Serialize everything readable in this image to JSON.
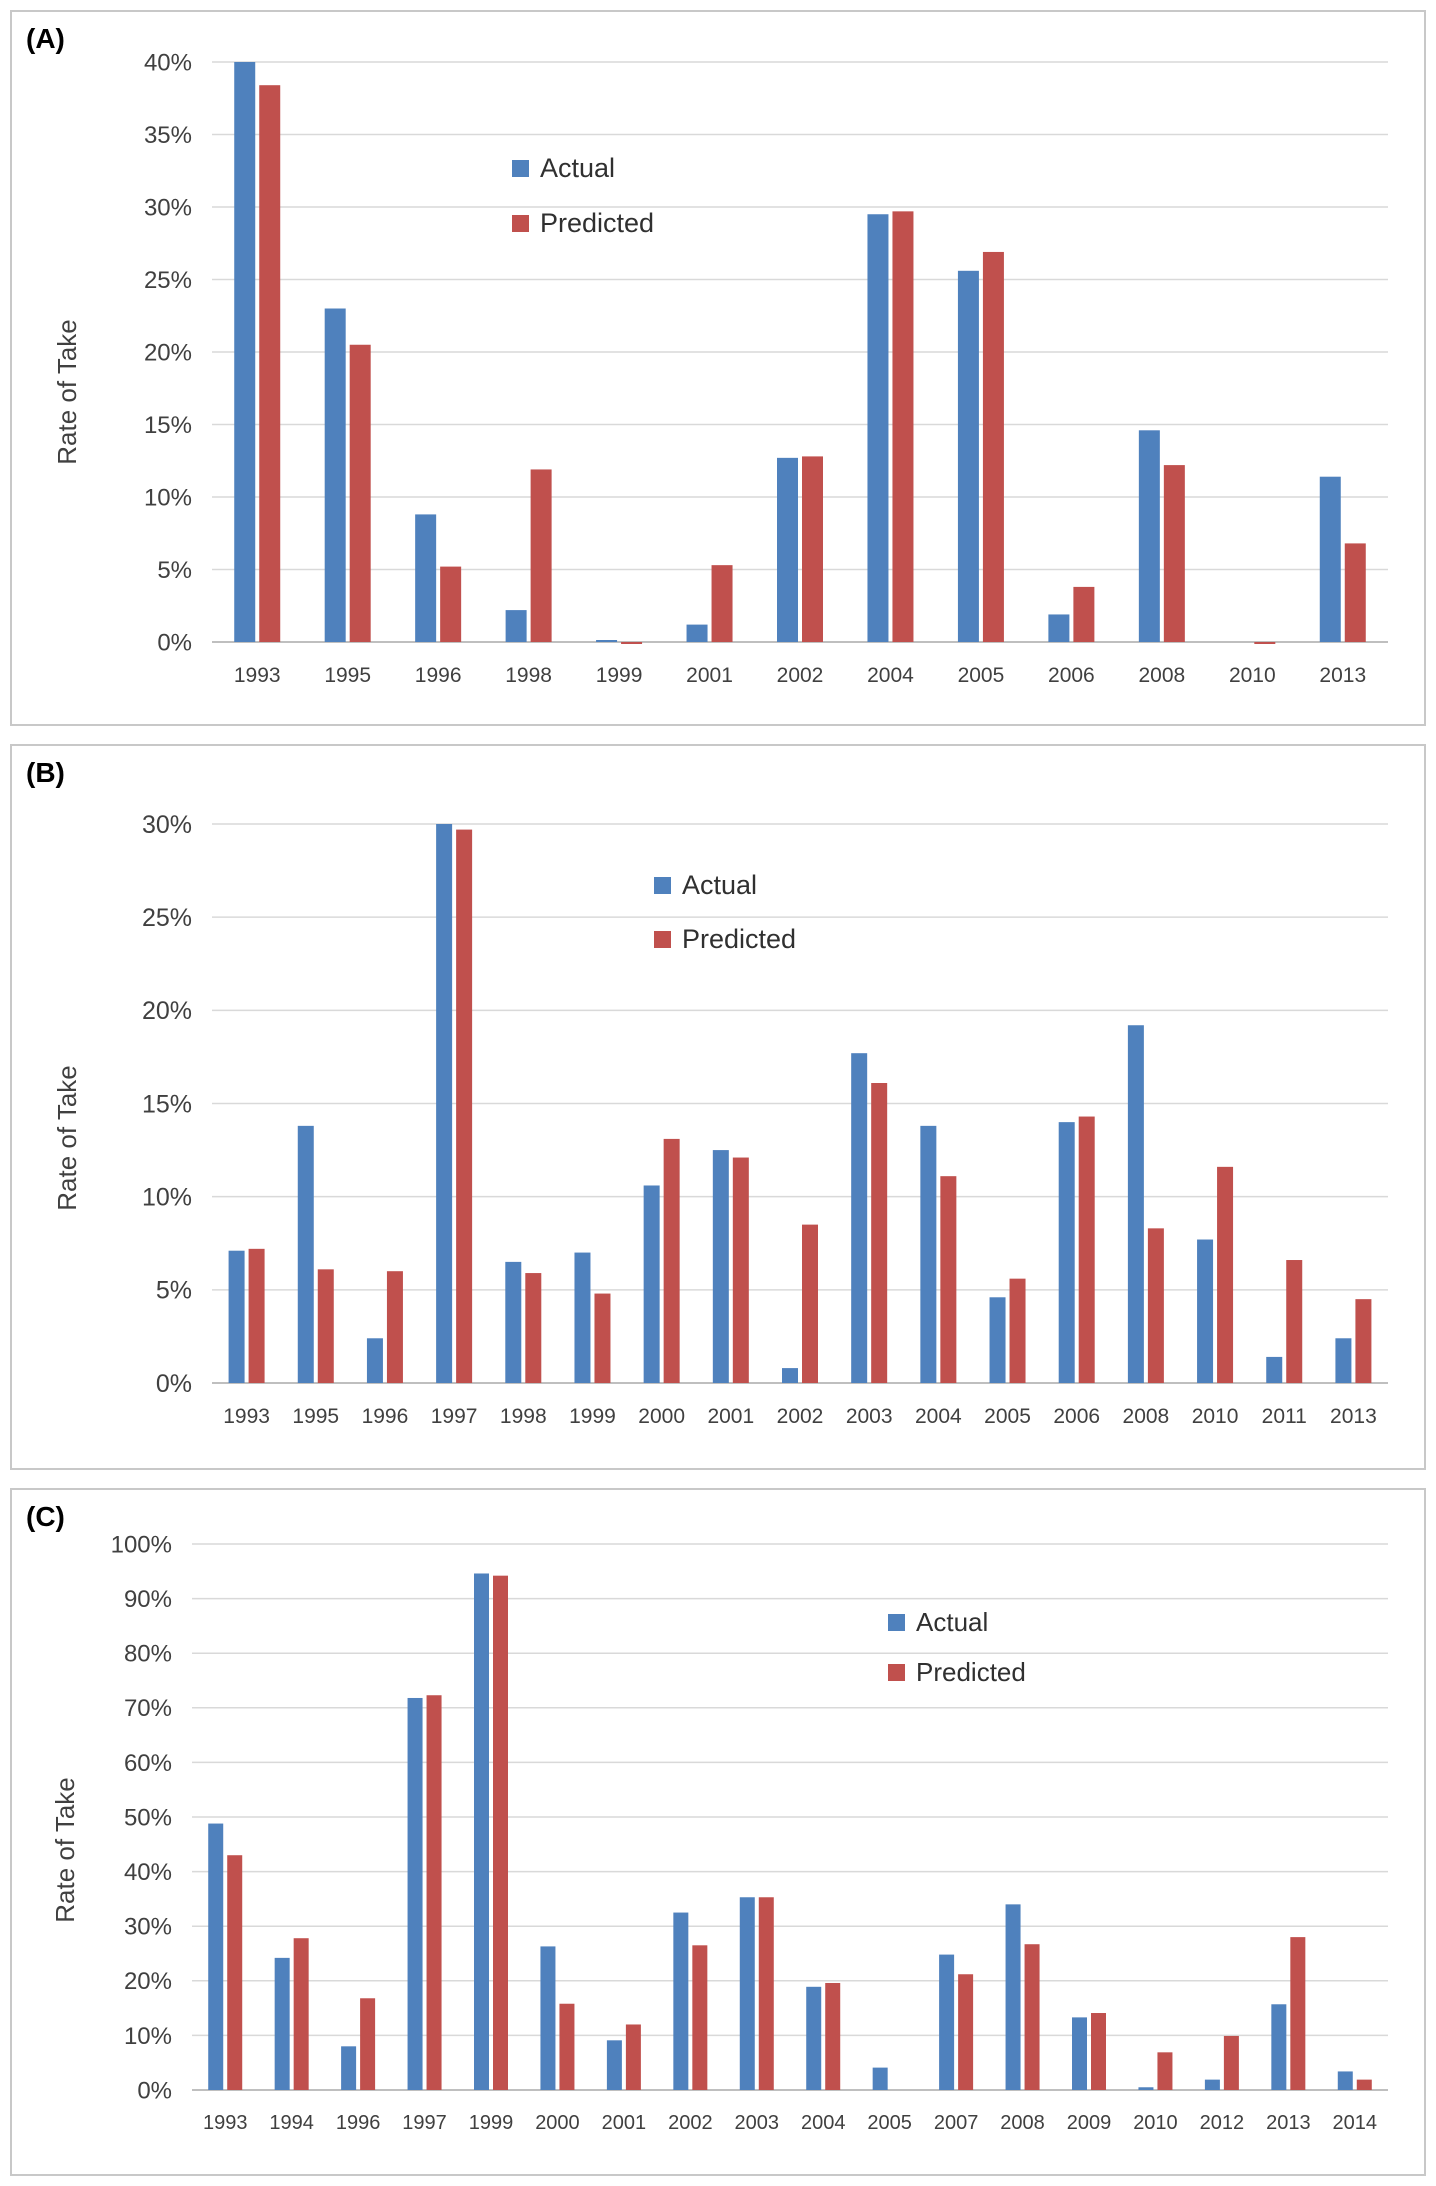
{
  "colors": {
    "actual": "#4f81bd",
    "predicted": "#c0504d",
    "grid": "#d9d9d9",
    "axis": "#bfbfbf"
  },
  "chart_data": [
    {
      "type": "bar",
      "panel_label": "(A)",
      "ylabel": "Rate of Take",
      "ylim": [
        0,
        40
      ],
      "yticks": [
        0,
        5,
        10,
        15,
        20,
        25,
        30,
        35,
        40
      ],
      "ytick_labels": [
        "0%",
        "5%",
        "10%",
        "15%",
        "20%",
        "25%",
        "30%",
        "35%",
        "40%"
      ],
      "legend": [
        "Actual",
        "Predicted"
      ],
      "categories": [
        "1993",
        "1995",
        "1996",
        "1998",
        "1999",
        "2001",
        "2002",
        "2004",
        "2005",
        "2006",
        "2008",
        "2010",
        "2013"
      ],
      "series": [
        {
          "name": "Actual",
          "values": [
            40,
            23,
            8.8,
            2.2,
            0.1,
            1.2,
            12.7,
            29.5,
            25.6,
            1.9,
            14.6,
            0,
            11.4
          ]
        },
        {
          "name": "Predicted",
          "values": [
            38.4,
            20.5,
            5.2,
            11.9,
            -0.1,
            5.3,
            12.8,
            29.7,
            26.9,
            3.8,
            12.2,
            -0.1,
            6.8
          ]
        }
      ]
    },
    {
      "type": "bar",
      "panel_label": "(B)",
      "ylabel": "Rate of Take",
      "ylim": [
        0,
        30
      ],
      "yticks": [
        0,
        5,
        10,
        15,
        20,
        25,
        30
      ],
      "ytick_labels": [
        "0%",
        "5%",
        "10%",
        "15%",
        "20%",
        "25%",
        "30%"
      ],
      "legend": [
        "Actual",
        "Predicted"
      ],
      "categories": [
        "1993",
        "1995",
        "1996",
        "1997",
        "1998",
        "1999",
        "2000",
        "2001",
        "2002",
        "2003",
        "2004",
        "2005",
        "2006",
        "2008",
        "2010",
        "2011",
        "2013"
      ],
      "series": [
        {
          "name": "Actual",
          "values": [
            7.1,
            13.8,
            2.4,
            30,
            6.5,
            7.0,
            10.6,
            12.5,
            0.8,
            17.7,
            13.8,
            4.6,
            14.0,
            19.2,
            7.7,
            1.4,
            2.4
          ]
        },
        {
          "name": "Predicted",
          "values": [
            7.2,
            6.1,
            6.0,
            29.7,
            5.9,
            4.8,
            13.1,
            12.1,
            8.5,
            16.1,
            11.1,
            5.6,
            14.3,
            8.3,
            11.6,
            6.6,
            4.5
          ]
        }
      ]
    },
    {
      "type": "bar",
      "panel_label": "(C)",
      "ylabel": "Rate of Take",
      "ylim": [
        0,
        100
      ],
      "yticks": [
        0,
        10,
        20,
        30,
        40,
        50,
        60,
        70,
        80,
        90,
        100
      ],
      "ytick_labels": [
        "0%",
        "10%",
        "20%",
        "30%",
        "40%",
        "50%",
        "60%",
        "70%",
        "80%",
        "90%",
        "100%"
      ],
      "legend": [
        "Actual",
        "Predicted"
      ],
      "categories": [
        "1993",
        "1994",
        "1996",
        "1997",
        "1999",
        "2000",
        "2001",
        "2002",
        "2003",
        "2004",
        "2005",
        "2007",
        "2008",
        "2009",
        "2010",
        "2012",
        "2013",
        "2014"
      ],
      "series": [
        {
          "name": "Actual",
          "values": [
            48.8,
            24.2,
            8.0,
            71.8,
            94.6,
            26.3,
            9.1,
            32.5,
            35.3,
            18.9,
            4.1,
            24.8,
            34.0,
            13.3,
            0.5,
            1.9,
            15.7,
            3.4
          ]
        },
        {
          "name": "Predicted",
          "values": [
            43.0,
            27.8,
            16.8,
            72.3,
            94.2,
            15.8,
            12.0,
            26.5,
            35.3,
            19.6,
            0,
            21.2,
            26.7,
            14.1,
            6.9,
            9.9,
            28.0,
            1.9
          ]
        }
      ]
    }
  ]
}
